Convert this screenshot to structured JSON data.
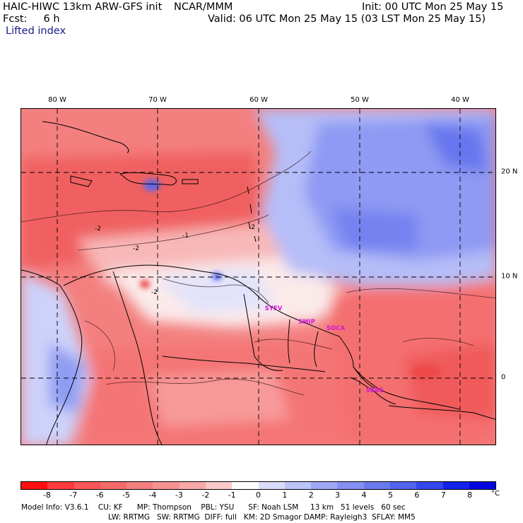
{
  "header": {
    "model": "HAIC-HIWC 13km ARW-GFS init",
    "org": "NCAR/MMM",
    "init": "Init: 00 UTC Mon 25 May 15",
    "fcst": "Fcst:     6 h",
    "valid": "Valid: 06 UTC Mon 25 May 15 (03 LST Mon 25 May 15)",
    "field": "Lifted index"
  },
  "map": {
    "lon_labels": [
      "80 W",
      "70 W",
      "60 W",
      "50 W",
      "40 W"
    ],
    "lat_labels": [
      "20 N",
      "10 N",
      "0"
    ],
    "contour_labels": [
      "-2",
      "-2",
      "-1",
      "-2",
      "-2"
    ],
    "sites": [
      "SYEV",
      "SMJP",
      "SOCA",
      "SBBE"
    ],
    "colors": {
      "negative_deep": "#ff1010",
      "negative_mid": "#f46a6a",
      "negative_light": "#f9b4b4",
      "neutral": "#ffffff",
      "positive_light": "#c8cffa",
      "positive_mid": "#6f7ff1",
      "positive_deep": "#0c0cea"
    }
  },
  "colorbar": {
    "colors": [
      "#ff0f0f",
      "#ff3a3a",
      "#fc5656",
      "#f66a6a",
      "#f37e7e",
      "#f59393",
      "#f8a9a9",
      "#facaca",
      "#ffffff",
      "#d9ddfb",
      "#bcc3f8",
      "#9fa8f5",
      "#8590f2",
      "#6b79ef",
      "#5263ee",
      "#3446ec",
      "#1322ea",
      "#0505e0"
    ],
    "ticks": [
      "-8",
      "-7",
      "-6",
      "-5",
      "-4",
      "-3",
      "-2",
      "-1",
      "0",
      "1",
      "2",
      "3",
      "4",
      "5",
      "6",
      "7",
      "8"
    ],
    "unit": "°C"
  },
  "footer": {
    "line1": "Model Info: V3.6.1    CU: KF      MP: Thompson    PBL: YSU      SF: Noah LSM     13 km   51 levels   60 sec",
    "line2": "LW: RRTMG   SW: RRTMG  DIFF: full   KM: 2D Smagor DAMP: Rayleigh3  SFLAY: MM5"
  }
}
